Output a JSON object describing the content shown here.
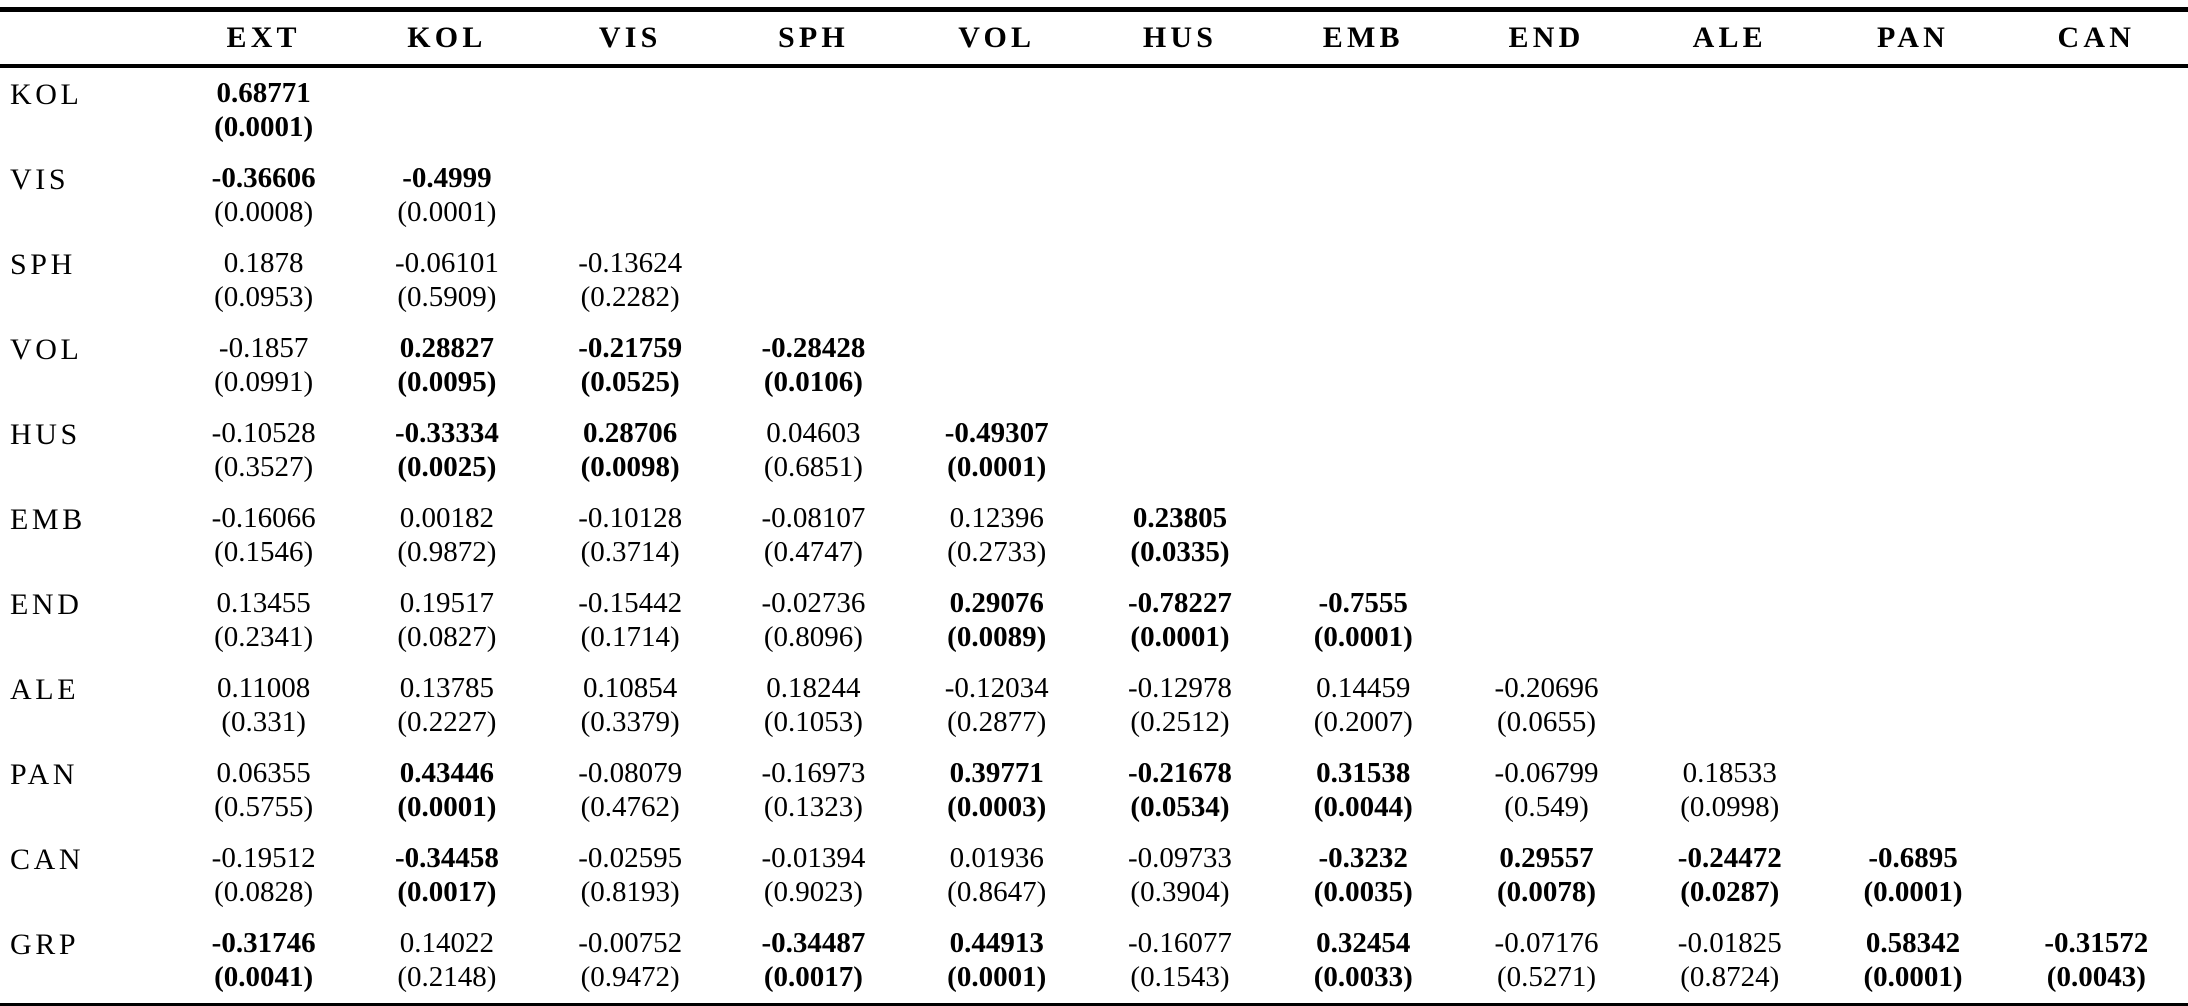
{
  "page": {
    "background": "#ffffff",
    "text_color": "#000000",
    "rule_color": "#000000"
  },
  "table": {
    "corner_label": "",
    "columns": [
      "EXT",
      "KOL",
      "VIS",
      "SPH",
      "VOL",
      "HUS",
      "EMB",
      "END",
      "ALE",
      "PAN",
      "CAN"
    ],
    "rows": [
      {
        "label": "KOL",
        "cells": [
          {
            "r": "0.68771",
            "p": "(0.0001)",
            "rb": true,
            "pb": true
          }
        ]
      },
      {
        "label": "VIS",
        "cells": [
          {
            "r": "-0.36606",
            "p": "(0.0008)",
            "rb": true,
            "pb": false
          },
          {
            "r": "-0.4999",
            "p": "(0.0001)",
            "rb": true,
            "pb": false
          }
        ]
      },
      {
        "label": "SPH",
        "cells": [
          {
            "r": "0.1878",
            "p": "(0.0953)",
            "rb": false,
            "pb": false
          },
          {
            "r": "-0.06101",
            "p": "(0.5909)",
            "rb": false,
            "pb": false
          },
          {
            "r": "-0.13624",
            "p": "(0.2282)",
            "rb": false,
            "pb": false
          }
        ]
      },
      {
        "label": "VOL",
        "cells": [
          {
            "r": "-0.1857",
            "p": "(0.0991)",
            "rb": false,
            "pb": false
          },
          {
            "r": "0.28827",
            "p": "(0.0095)",
            "rb": true,
            "pb": true
          },
          {
            "r": "-0.21759",
            "p": "(0.0525)",
            "rb": true,
            "pb": true
          },
          {
            "r": "-0.28428",
            "p": "(0.0106)",
            "rb": true,
            "pb": true
          }
        ]
      },
      {
        "label": "HUS",
        "cells": [
          {
            "r": "-0.10528",
            "p": "(0.3527)",
            "rb": false,
            "pb": false
          },
          {
            "r": "-0.33334",
            "p": "(0.0025)",
            "rb": true,
            "pb": true
          },
          {
            "r": "0.28706",
            "p": "(0.0098)",
            "rb": true,
            "pb": true
          },
          {
            "r": "0.04603",
            "p": "(0.6851)",
            "rb": false,
            "pb": false
          },
          {
            "r": "-0.49307",
            "p": "(0.0001)",
            "rb": true,
            "pb": true
          }
        ]
      },
      {
        "label": "EMB",
        "cells": [
          {
            "r": "-0.16066",
            "p": "(0.1546)",
            "rb": false,
            "pb": false
          },
          {
            "r": "0.00182",
            "p": "(0.9872)",
            "rb": false,
            "pb": false
          },
          {
            "r": "-0.10128",
            "p": "(0.3714)",
            "rb": false,
            "pb": false
          },
          {
            "r": "-0.08107",
            "p": "(0.4747)",
            "rb": false,
            "pb": false
          },
          {
            "r": "0.12396",
            "p": "(0.2733)",
            "rb": false,
            "pb": false
          },
          {
            "r": "0.23805",
            "p": "(0.0335)",
            "rb": true,
            "pb": true
          }
        ]
      },
      {
        "label": "END",
        "cells": [
          {
            "r": "0.13455",
            "p": "(0.2341)",
            "rb": false,
            "pb": false
          },
          {
            "r": "0.19517",
            "p": "(0.0827)",
            "rb": false,
            "pb": false
          },
          {
            "r": "-0.15442",
            "p": "(0.1714)",
            "rb": false,
            "pb": false
          },
          {
            "r": "-0.02736",
            "p": "(0.8096)",
            "rb": false,
            "pb": false
          },
          {
            "r": "0.29076",
            "p": "(0.0089)",
            "rb": true,
            "pb": true
          },
          {
            "r": "-0.78227",
            "p": "(0.0001)",
            "rb": true,
            "pb": true
          },
          {
            "r": "-0.7555",
            "p": "(0.0001)",
            "rb": true,
            "pb": true
          }
        ]
      },
      {
        "label": "ALE",
        "cells": [
          {
            "r": "0.11008",
            "p": "(0.331)",
            "rb": false,
            "pb": false
          },
          {
            "r": "0.13785",
            "p": "(0.2227)",
            "rb": false,
            "pb": false
          },
          {
            "r": "0.10854",
            "p": "(0.3379)",
            "rb": false,
            "pb": false
          },
          {
            "r": "0.18244",
            "p": "(0.1053)",
            "rb": false,
            "pb": false
          },
          {
            "r": "-0.12034",
            "p": "(0.2877)",
            "rb": false,
            "pb": false
          },
          {
            "r": "-0.12978",
            "p": "(0.2512)",
            "rb": false,
            "pb": false
          },
          {
            "r": "0.14459",
            "p": "(0.2007)",
            "rb": false,
            "pb": false
          },
          {
            "r": "-0.20696",
            "p": "(0.0655)",
            "rb": false,
            "pb": false
          }
        ]
      },
      {
        "label": "PAN",
        "cells": [
          {
            "r": "0.06355",
            "p": "(0.5755)",
            "rb": false,
            "pb": false
          },
          {
            "r": "0.43446",
            "p": "(0.0001)",
            "rb": true,
            "pb": true
          },
          {
            "r": "-0.08079",
            "p": "(0.4762)",
            "rb": false,
            "pb": false
          },
          {
            "r": "-0.16973",
            "p": "(0.1323)",
            "rb": false,
            "pb": false
          },
          {
            "r": "0.39771",
            "p": "(0.0003)",
            "rb": true,
            "pb": true
          },
          {
            "r": "-0.21678",
            "p": "(0.0534)",
            "rb": true,
            "pb": true
          },
          {
            "r": "0.31538",
            "p": "(0.0044)",
            "rb": true,
            "pb": true
          },
          {
            "r": "-0.06799",
            "p": "(0.549)",
            "rb": false,
            "pb": false
          },
          {
            "r": "0.18533",
            "p": "(0.0998)",
            "rb": false,
            "pb": false
          }
        ]
      },
      {
        "label": "CAN",
        "cells": [
          {
            "r": "-0.19512",
            "p": "(0.0828)",
            "rb": false,
            "pb": false
          },
          {
            "r": "-0.34458",
            "p": "(0.0017)",
            "rb": true,
            "pb": true
          },
          {
            "r": "-0.02595",
            "p": "(0.8193)",
            "rb": false,
            "pb": false
          },
          {
            "r": "-0.01394",
            "p": "(0.9023)",
            "rb": false,
            "pb": false
          },
          {
            "r": "0.01936",
            "p": "(0.8647)",
            "rb": false,
            "pb": false
          },
          {
            "r": "-0.09733",
            "p": "(0.3904)",
            "rb": false,
            "pb": false
          },
          {
            "r": "-0.3232",
            "p": "(0.0035)",
            "rb": true,
            "pb": true
          },
          {
            "r": "0.29557",
            "p": "(0.0078)",
            "rb": true,
            "pb": true
          },
          {
            "r": "-0.24472",
            "p": "(0.0287)",
            "rb": true,
            "pb": true
          },
          {
            "r": "-0.6895",
            "p": "(0.0001)",
            "rb": true,
            "pb": true
          }
        ]
      },
      {
        "label": "GRP",
        "cells": [
          {
            "r": "-0.31746",
            "p": "(0.0041)",
            "rb": true,
            "pb": true
          },
          {
            "r": "0.14022",
            "p": "(0.2148)",
            "rb": false,
            "pb": false
          },
          {
            "r": "-0.00752",
            "p": "(0.9472)",
            "rb": false,
            "pb": false
          },
          {
            "r": "-0.34487",
            "p": "(0.0017)",
            "rb": true,
            "pb": true
          },
          {
            "r": "0.44913",
            "p": "(0.0001)",
            "rb": true,
            "pb": true
          },
          {
            "r": "-0.16077",
            "p": "(0.1543)",
            "rb": false,
            "pb": false
          },
          {
            "r": "0.32454",
            "p": "(0.0033)",
            "rb": true,
            "pb": true
          },
          {
            "r": "-0.07176",
            "p": "(0.5271)",
            "rb": false,
            "pb": false
          },
          {
            "r": "-0.01825",
            "p": "(0.8724)",
            "rb": false,
            "pb": false
          },
          {
            "r": "0.58342",
            "p": "(0.0001)",
            "rb": true,
            "pb": true
          },
          {
            "r": "-0.31572",
            "p": "(0.0043)",
            "rb": true,
            "pb": true
          }
        ]
      }
    ]
  }
}
